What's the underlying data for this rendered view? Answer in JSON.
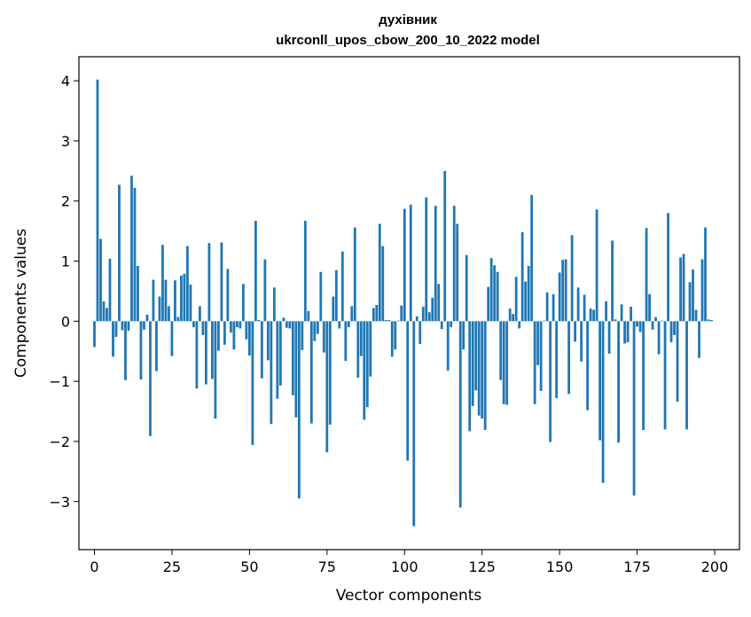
{
  "chart_data": {
    "type": "bar",
    "title": "духівник",
    "subtitle": "ukrconll_upos_cbow_200_10_2022 model",
    "xlabel": "Vector components",
    "ylabel": "Components values",
    "xlim": [
      -5,
      208
    ],
    "ylim": [
      -3.8,
      4.4
    ],
    "xticks": [
      0,
      25,
      50,
      75,
      100,
      125,
      150,
      175,
      200
    ],
    "yticks": [
      -3,
      -2,
      -1,
      0,
      1,
      2,
      3,
      4
    ],
    "grid": false,
    "bar_color": "#1f77b4",
    "values": [
      -0.43,
      4.02,
      1.37,
      0.33,
      0.22,
      1.04,
      -0.59,
      -0.26,
      2.27,
      -0.15,
      -0.98,
      -0.16,
      2.42,
      2.22,
      0.92,
      -0.97,
      -0.14,
      0.11,
      -1.91,
      0.69,
      -0.83,
      0.41,
      1.27,
      0.69,
      0.25,
      -0.58,
      0.68,
      0.07,
      0.76,
      0.79,
      1.25,
      0.61,
      -0.1,
      -1.12,
      0.25,
      -0.23,
      -1.05,
      1.3,
      -0.96,
      -1.62,
      -0.49,
      1.31,
      -0.39,
      0.87,
      -0.19,
      -0.47,
      -0.1,
      -0.12,
      0.62,
      -0.3,
      -0.57,
      -2.06,
      1.67,
      0.02,
      -0.95,
      1.03,
      -0.65,
      -1.71,
      0.56,
      -1.29,
      -1.07,
      0.06,
      -0.11,
      -0.12,
      -1.23,
      -1.6,
      -2.95,
      -0.48,
      1.67,
      0.17,
      -1.7,
      -0.33,
      -0.21,
      0.82,
      -0.52,
      -2.18,
      -1.72,
      0.41,
      0.85,
      -0.12,
      1.16,
      -0.66,
      -0.1,
      0.25,
      1.56,
      -0.94,
      -0.58,
      -1.64,
      -1.43,
      -0.92,
      0.22,
      0.27,
      1.62,
      1.25,
      0.02,
      0.02,
      -0.59,
      -0.47,
      0.01,
      0.26,
      1.87,
      -2.32,
      1.94,
      -3.41,
      0.08,
      -0.38,
      0.24,
      2.06,
      0.15,
      0.39,
      1.92,
      0.62,
      -0.13,
      2.5,
      -0.82,
      -0.1,
      1.92,
      1.62,
      -3.1,
      -0.47,
      1.1,
      -1.83,
      -1.41,
      -1.15,
      -1.57,
      -1.62,
      -1.81,
      0.57,
      1.05,
      0.93,
      0.82,
      -0.98,
      -1.38,
      -1.39,
      0.21,
      0.12,
      0.74,
      -0.12,
      1.48,
      0.66,
      0.92,
      2.1,
      -1.38,
      -0.73,
      -1.16,
      0.01,
      0.48,
      -2.01,
      0.45,
      -1.28,
      0.81,
      1.02,
      1.03,
      -1.21,
      1.43,
      -0.34,
      0.56,
      -0.67,
      0.44,
      -1.48,
      0.21,
      0.19,
      1.86,
      -1.98,
      -2.69,
      0.33,
      -0.54,
      1.34,
      0.03,
      -2.02,
      0.28,
      -0.37,
      -0.35,
      0.24,
      -2.9,
      -0.09,
      -0.18,
      -1.81,
      1.55,
      0.45,
      -0.14,
      0.07,
      -0.55,
      0.01,
      -1.8,
      1.8,
      -0.35,
      -0.23,
      -1.34,
      1.06,
      1.12,
      -1.8,
      0.65,
      0.86,
      0.19,
      -0.61,
      1.03,
      1.56,
      0.03,
      0.02
    ]
  }
}
